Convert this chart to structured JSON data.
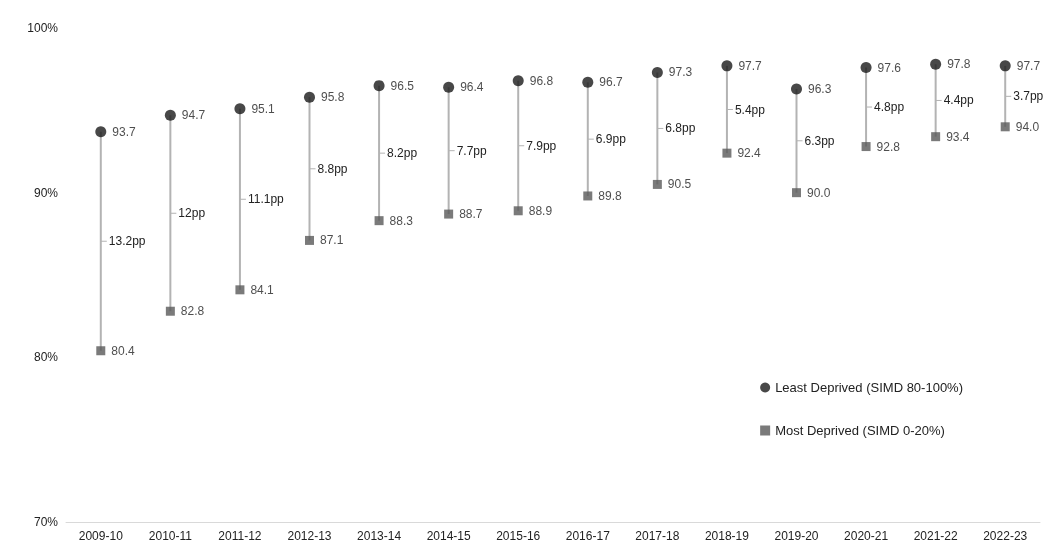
{
  "chart_data": {
    "type": "scatter",
    "categories": [
      "2009-10",
      "2010-11",
      "2011-12",
      "2012-13",
      "2013-14",
      "2014-15",
      "2015-16",
      "2016-17",
      "2017-18",
      "2018-19",
      "2019-20",
      "2020-21",
      "2021-22",
      "2022-23"
    ],
    "series": [
      {
        "name": "Least Deprived (SIMD 80-100%)",
        "color": "#1a1a1a",
        "marker": "circle",
        "values": [
          93.7,
          94.7,
          95.1,
          95.8,
          96.5,
          96.4,
          96.8,
          96.7,
          97.3,
          97.7,
          96.3,
          97.6,
          97.8,
          97.7
        ],
        "value_labels": [
          "93.7",
          "94.7",
          "95.1",
          "95.8",
          "96.5",
          "96.4",
          "96.8",
          "96.7",
          "97.3",
          "97.7",
          "96.3",
          "97.6",
          "97.8",
          "97.7"
        ]
      },
      {
        "name": "Most Deprived (SIMD 0-20%)",
        "color": "#595959",
        "marker": "square",
        "values": [
          80.4,
          82.8,
          84.1,
          87.1,
          88.3,
          88.7,
          88.9,
          89.8,
          90.5,
          92.4,
          90.0,
          92.8,
          93.4,
          94.0
        ],
        "value_labels": [
          "80.4",
          "82.8",
          "84.1",
          "87.1",
          "88.3",
          "88.7",
          "88.9",
          "89.8",
          "90.5",
          "92.4",
          "90.0",
          "92.8",
          "93.4",
          "94.0"
        ]
      }
    ],
    "ylim": [
      70,
      100
    ],
    "yticks": [
      {
        "value": 70,
        "label": "70%"
      },
      {
        "value": 80,
        "label": "80%"
      },
      {
        "value": 90,
        "label": "90%"
      },
      {
        "value": 100,
        "label": "100%"
      }
    ],
    "annotations": [
      "13.2pp",
      "12pp",
      "11.1pp",
      "8.8pp",
      "8.2pp",
      "7.7pp",
      "7.9pp",
      "6.9pp",
      "6.8pp",
      "5.4pp",
      "6.3pp",
      "4.8pp",
      "4.4pp",
      "3.7pp"
    ],
    "grid": false,
    "legend": "bottom right"
  }
}
